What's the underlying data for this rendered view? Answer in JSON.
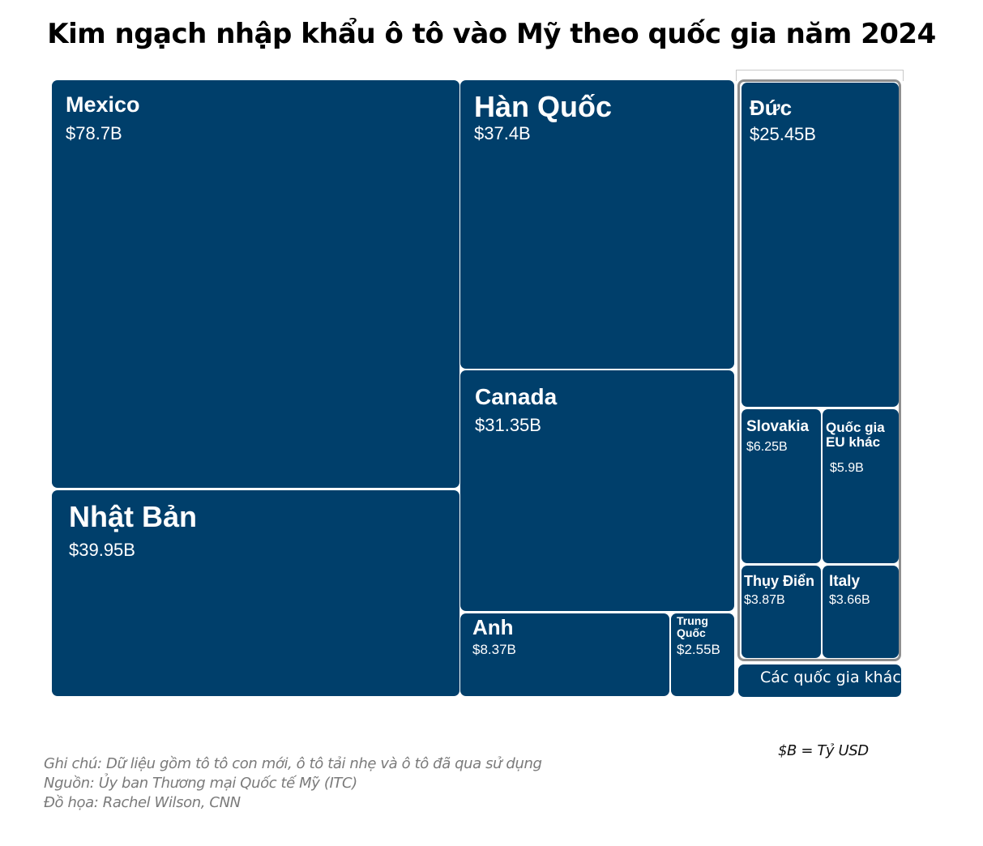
{
  "chart_data": {
    "type": "treemap",
    "title": "Kim ngạch nhập khẩu ô tô vào Mỹ theo quốc gia năm 2024",
    "unit_note": "$B = Tỷ USD",
    "tiles": [
      {
        "name": "Mexico",
        "value": 78.7,
        "value_label": "$78.7B"
      },
      {
        "name": "Nhật Bản",
        "value": 39.95,
        "value_label": "$39.95B"
      },
      {
        "name": "Hàn Quốc",
        "value": 37.4,
        "value_label": "$37.4B"
      },
      {
        "name": "Canada",
        "value": 31.35,
        "value_label": "$31.35B"
      },
      {
        "name": "Anh",
        "value": 8.37,
        "value_label": "$8.37B"
      },
      {
        "name": "Trung\nQuốc",
        "value": 2.55,
        "value_label": "$2.55B"
      },
      {
        "name": "Đức",
        "value": 25.45,
        "value_label": "$25.45B",
        "group": "EU"
      },
      {
        "name": "Slovakia",
        "value": 6.25,
        "value_label": "$6.25B",
        "group": "EU"
      },
      {
        "name": "Quốc gia\nEU khác",
        "value": 5.9,
        "value_label": "$5.9B",
        "group": "EU"
      },
      {
        "name": "Thụy Điển",
        "value": 3.87,
        "value_label": "$3.87B",
        "group": "EU"
      },
      {
        "name": "Italy",
        "value": 3.66,
        "value_label": "$3.66B",
        "group": "EU"
      },
      {
        "name": "Các quốc gia khác",
        "value": null,
        "value_label": ""
      }
    ],
    "colors": {
      "tile": "#003f6b",
      "group_border": "#8f8f8f"
    }
  },
  "notes": {
    "note": "Ghi chú: Dữ liệu gồm tô tô con mới, ô tô tải nhẹ và ô tô đã qua sử dụng",
    "source": "Nguồn: Ủy ban Thương mại Quốc tế Mỹ (ITC)",
    "credit": "Đồ họa: Rachel Wilson, CNN"
  }
}
